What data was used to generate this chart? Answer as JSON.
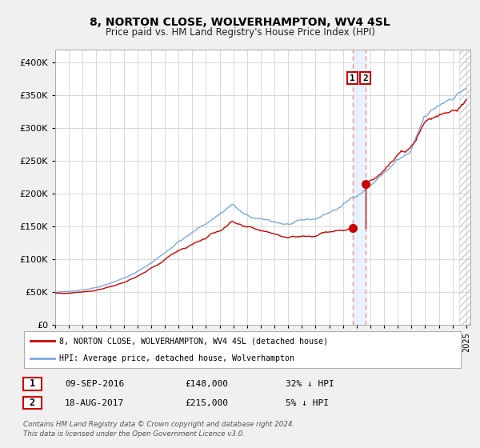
{
  "title": "8, NORTON CLOSE, WOLVERHAMPTON, WV4 4SL",
  "subtitle": "Price paid vs. HM Land Registry's House Price Index (HPI)",
  "legend_line1": "8, NORTON CLOSE, WOLVERHAMPTON, WV4 4SL (detached house)",
  "legend_line2": "HPI: Average price, detached house, Wolverhampton",
  "transaction1_date": "09-SEP-2016",
  "transaction1_price": "£148,000",
  "transaction1_hpi": "32% ↓ HPI",
  "transaction1_year": 2016.69,
  "transaction1_value": 148000,
  "transaction2_date": "18-AUG-2017",
  "transaction2_price": "£215,000",
  "transaction2_hpi": "5% ↓ HPI",
  "transaction2_year": 2017.63,
  "transaction2_value": 215000,
  "footer_line1": "Contains HM Land Registry data © Crown copyright and database right 2024.",
  "footer_line2": "This data is licensed under the Open Government Licence v3.0.",
  "red_color": "#cc0000",
  "blue_color": "#7aaadd",
  "background_color": "#f0f0f0",
  "plot_bg_color": "#ffffff",
  "grid_color": "#cccccc",
  "ylim": [
    0,
    420000
  ],
  "xlim_start": 1995,
  "xlim_end": 2025.3
}
